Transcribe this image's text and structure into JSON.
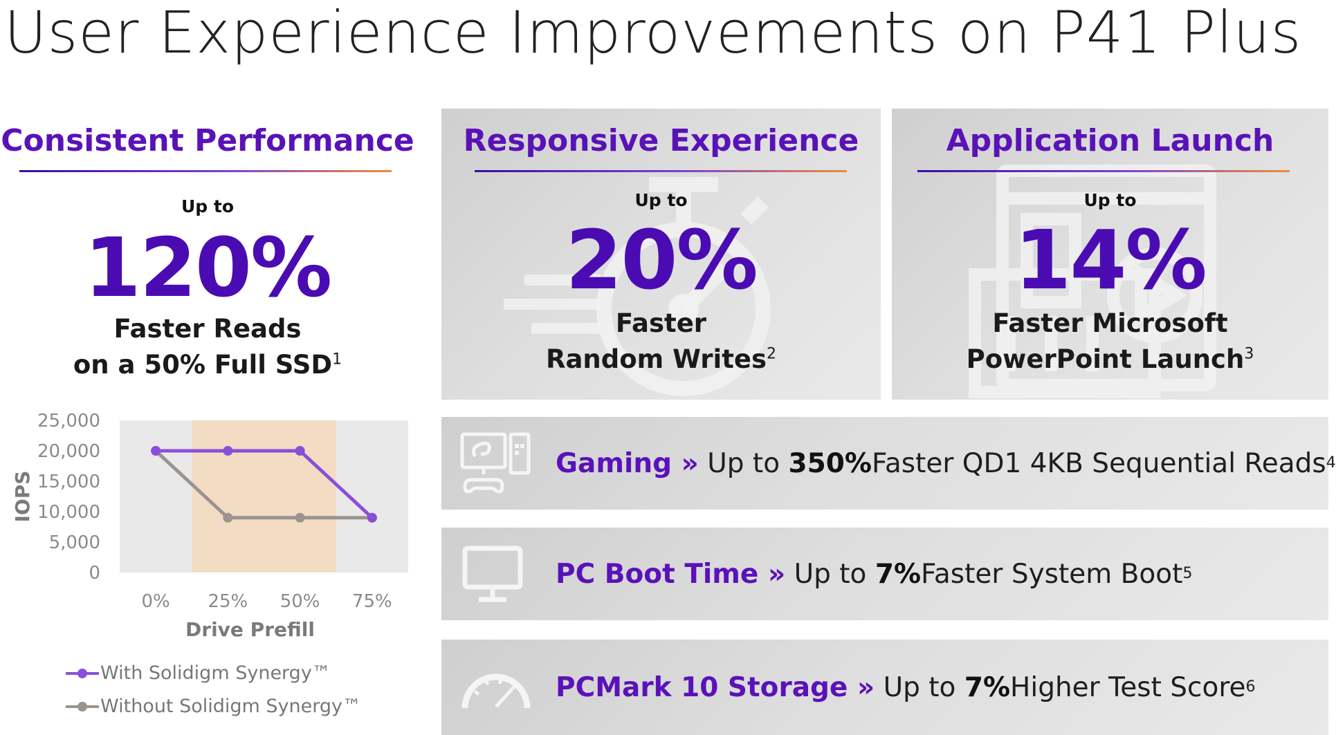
{
  "title": "User Experience Improvements on P41 Plus",
  "consistent": {
    "heading": "Consistent Performance",
    "upto": "Up to",
    "value": "120%",
    "line1": "Faster Reads",
    "line2": "on a 50% Full SSD",
    "footnote": "1"
  },
  "responsive": {
    "heading": "Responsive Experience",
    "upto": "Up to",
    "value": "20%",
    "line1": "Faster",
    "line2": "Random Writes",
    "footnote": "2"
  },
  "app_launch": {
    "heading": "Application Launch",
    "upto": "Up to",
    "value": "14%",
    "line1": "Faster Microsoft",
    "line2": "PowerPoint Launch",
    "footnote": "3"
  },
  "rows": [
    {
      "icon": "gaming-pc-icon",
      "label": "Gaming »",
      "pre": "Up to ",
      "bold": "350%",
      "post": " Faster QD1 4KB Sequential Reads",
      "footnote": "4"
    },
    {
      "icon": "monitor-icon",
      "label": "PC Boot Time »",
      "pre": "Up to ",
      "bold": "7%",
      "post": " Faster System Boot",
      "footnote": "5"
    },
    {
      "icon": "speedometer-icon",
      "label": "PCMark 10 Storage »",
      "pre": "Up to ",
      "bold": "7%",
      "post": " Higher Test Score",
      "footnote": "6"
    }
  ],
  "chart_data": {
    "type": "line",
    "x": [
      "0%",
      "25%",
      "50%",
      "75%"
    ],
    "xlabel": "Drive Prefill",
    "ylabel": "IOPS",
    "ylim": [
      0,
      25000
    ],
    "yticks": [
      "25,000",
      "20,000",
      "15,000",
      "10,000",
      "5,000",
      "0"
    ],
    "grid": false,
    "legend_position": "bottom-left",
    "highlight_band": [
      "25%",
      "50%"
    ],
    "series": [
      {
        "name": "With Solidigm Synergy™",
        "color": "#8a4fd8",
        "values": [
          20000,
          20000,
          20000,
          9000
        ]
      },
      {
        "name": "Without Solidigm Synergy™",
        "color": "#9a948e",
        "values": [
          20000,
          9000,
          9000,
          9000
        ]
      }
    ]
  },
  "colors": {
    "accent": "#5a12b8",
    "big_number": "#4a0cb2",
    "underline_end": "#f08a3c",
    "panel": "#dcdcdc",
    "band": "#f3dcc4"
  }
}
